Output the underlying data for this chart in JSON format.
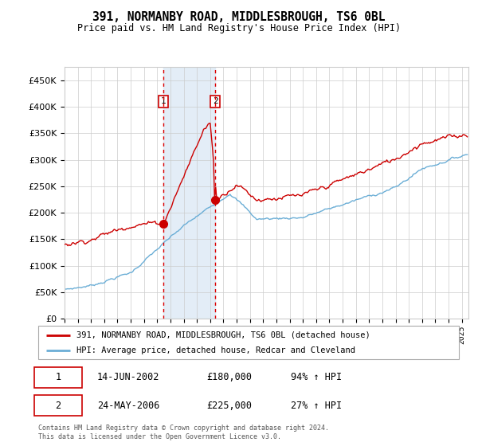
{
  "title": "391, NORMANBY ROAD, MIDDLESBROUGH, TS6 0BL",
  "subtitle": "Price paid vs. HM Land Registry's House Price Index (HPI)",
  "legend_line1": "391, NORMANBY ROAD, MIDDLESBROUGH, TS6 0BL (detached house)",
  "legend_line2": "HPI: Average price, detached house, Redcar and Cleveland",
  "footer": "Contains HM Land Registry data © Crown copyright and database right 2024.\nThis data is licensed under the Open Government Licence v3.0.",
  "sale1_date": "14-JUN-2002",
  "sale1_price": "£180,000",
  "sale1_hpi": "94% ↑ HPI",
  "sale2_date": "24-MAY-2006",
  "sale2_price": "£225,000",
  "sale2_hpi": "27% ↑ HPI",
  "hpi_color": "#6baed6",
  "price_color": "#cc0000",
  "sale_marker_color": "#cc0000",
  "background_color": "#ffffff",
  "grid_color": "#cccccc",
  "ylim": [
    0,
    475000
  ],
  "yticks": [
    0,
    50000,
    100000,
    150000,
    200000,
    250000,
    300000,
    350000,
    400000,
    450000
  ],
  "sale1_t": 2002.458,
  "sale2_t": 2006.375
}
